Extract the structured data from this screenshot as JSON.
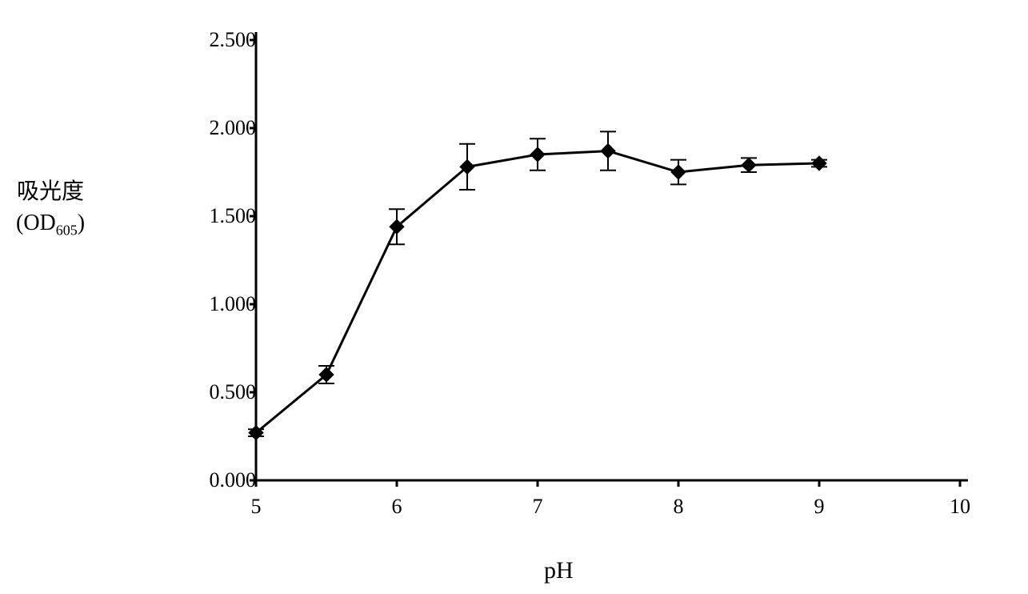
{
  "chart": {
    "type": "line",
    "y_axis_label_line1": "吸光度",
    "y_axis_label_line2_prefix": "(OD",
    "y_axis_label_line2_sub": "605",
    "y_axis_label_line2_suffix": ")",
    "x_axis_label": "pH",
    "x_ticks": [
      5,
      6,
      7,
      8,
      9,
      10
    ],
    "y_ticks": [
      "0.000",
      "0.500",
      "1.000",
      "1.500",
      "2.000",
      "2.500"
    ],
    "xlim": [
      5,
      10
    ],
    "ylim": [
      0,
      2.5
    ],
    "background_color": "#ffffff",
    "axis_color": "#000000",
    "line_color": "#000000",
    "marker_color": "#000000",
    "line_width": 3,
    "marker_size": 9,
    "marker_shape": "diamond",
    "error_bar_color": "#000000",
    "error_bar_width": 2,
    "error_bar_cap_width": 10,
    "tick_length": 8,
    "axis_width": 3,
    "title_fontsize": 28,
    "tick_fontsize": 26,
    "data": [
      {
        "x": 5.0,
        "y": 0.27,
        "err": 0.02
      },
      {
        "x": 5.5,
        "y": 0.6,
        "err": 0.05
      },
      {
        "x": 6.0,
        "y": 1.44,
        "err": 0.1
      },
      {
        "x": 6.5,
        "y": 1.78,
        "err": 0.13
      },
      {
        "x": 7.0,
        "y": 1.85,
        "err": 0.09
      },
      {
        "x": 7.5,
        "y": 1.87,
        "err": 0.11
      },
      {
        "x": 8.0,
        "y": 1.75,
        "err": 0.07
      },
      {
        "x": 8.5,
        "y": 1.79,
        "err": 0.04
      },
      {
        "x": 9.0,
        "y": 1.8,
        "err": 0.02
      }
    ]
  }
}
